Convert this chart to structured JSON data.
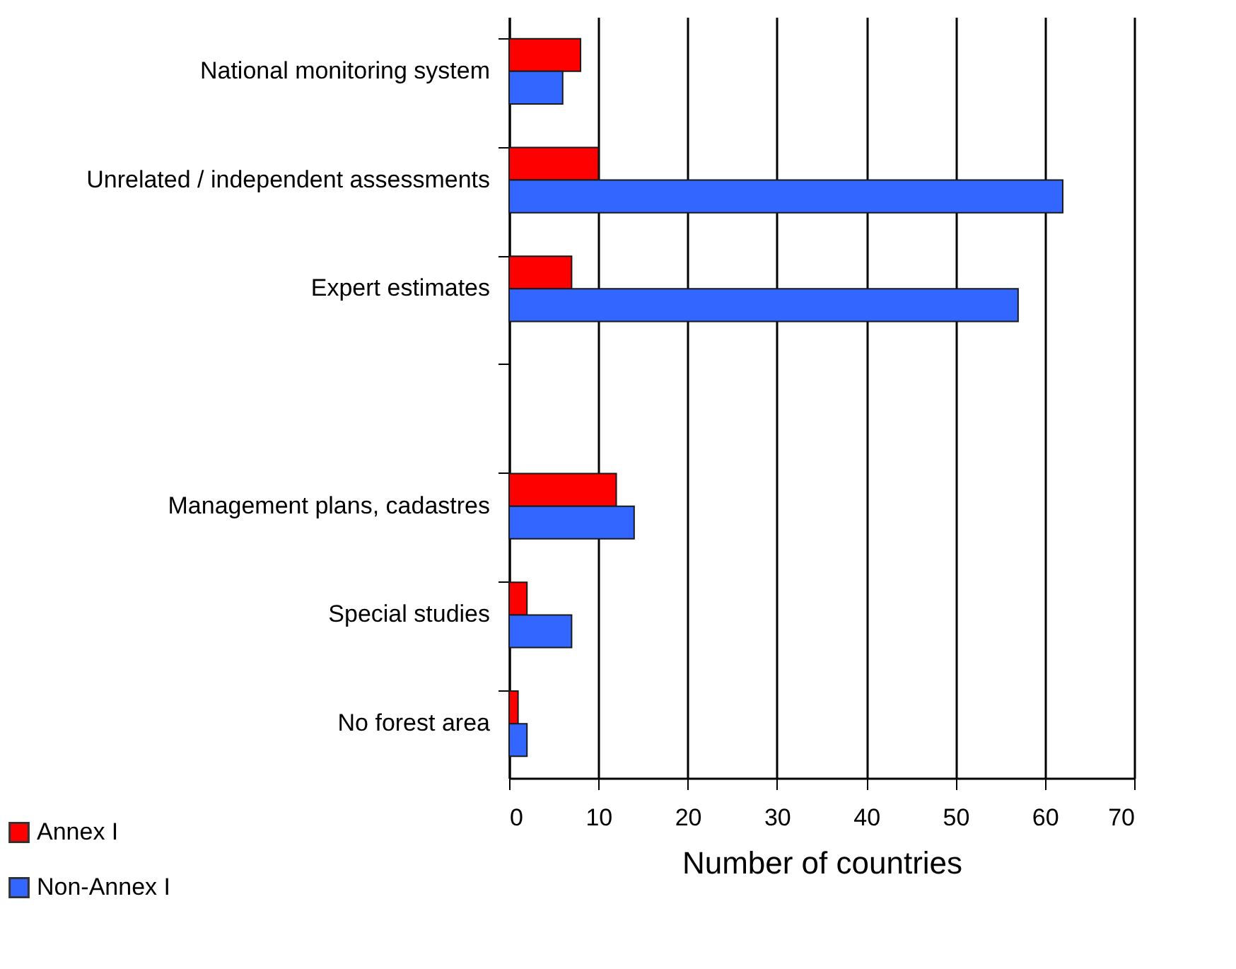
{
  "chart_data": {
    "type": "bar",
    "orientation": "horizontal",
    "xlabel": "Number of countries",
    "categories": [
      "National monitoring system",
      "Unrelated / independent assessments",
      "Expert estimates",
      null,
      "Management plans, cadastres",
      "Special studies",
      "No forest area"
    ],
    "series": [
      {
        "name": "Annex I",
        "color": "#ff0000",
        "values": [
          8,
          10,
          7,
          null,
          12,
          2,
          1
        ]
      },
      {
        "name": "Non-Annex I",
        "color": "#3366ff",
        "values": [
          6,
          62,
          57,
          null,
          14,
          7,
          2
        ]
      }
    ],
    "xlim": [
      0,
      70
    ],
    "xticks": [
      0,
      10,
      20,
      30,
      40,
      50,
      60,
      70
    ],
    "grid": "x",
    "legend": "bottom left"
  }
}
